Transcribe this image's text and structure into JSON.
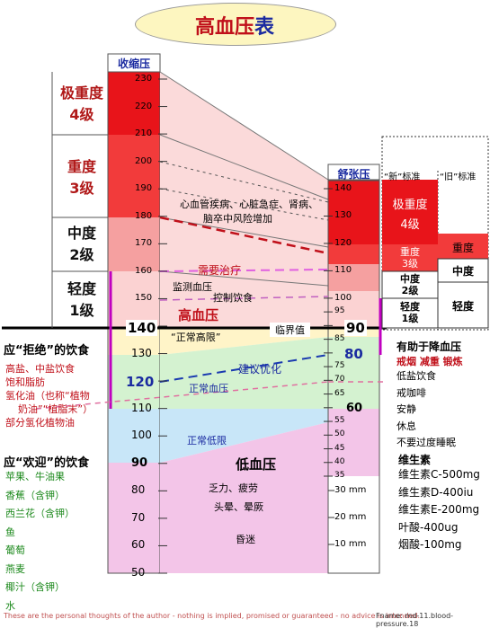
{
  "title": {
    "main": "高血压",
    "suffix": "表"
  },
  "systolic_header": "收缩压",
  "diastolic_header": "舒张压",
  "systolic_ticks": [
    "230",
    "220",
    "210",
    "200",
    "190",
    "180",
    "170",
    "160",
    "150",
    "140",
    "130",
    "120",
    "110",
    "100",
    "90",
    "80",
    "70",
    "60",
    "50"
  ],
  "diastolic_ticks": [
    "140",
    "130",
    "120",
    "110",
    "100",
    "95",
    "90",
    "85",
    "80",
    "75",
    "70",
    "65",
    "60",
    "55",
    "50",
    "45",
    "40",
    "35"
  ],
  "mm_ticks": [
    "30 mm",
    "20 mm",
    "10 mm"
  ],
  "grades_left": [
    {
      "name": "极重度",
      "level": "4级"
    },
    {
      "name": "重度",
      "level": "3级"
    },
    {
      "name": "中度",
      "level": "2级"
    },
    {
      "name": "轻度",
      "level": "1级"
    }
  ],
  "key_values": {
    "sys_140": "140",
    "sys_120": "120",
    "sys_90": "90",
    "dia_90": "90",
    "dia_80": "80",
    "dia_60": "60"
  },
  "center_labels": {
    "complications": "心血管疾病、心脏急症、肾病、",
    "stroke": "脑卒中风险增加",
    "need_treatment": "需要治疗",
    "monitor": "监测血压",
    "control_diet": "控制饮食",
    "hypertension": "高血压",
    "critical": "临界值",
    "normal_high": "“正常高限”",
    "suggest": "建议优化",
    "normal_bp": "正常血压",
    "normal_low": "正常低限",
    "hypotension": "低血压",
    "fatigue": "乏力、疲劳",
    "dizzy": "头晕、晕厥",
    "coma": "昏迷"
  },
  "standards": {
    "new_header": "“新”标准",
    "old_header": "“旧”标准",
    "new": [
      {
        "name": "极重度",
        "level": "4级"
      },
      {
        "name": "重度",
        "level": "3级"
      },
      {
        "name": "中度",
        "level": "2级"
      },
      {
        "name": "轻度",
        "level": "1级"
      }
    ],
    "old": [
      "重度",
      "中度",
      "轻度"
    ]
  },
  "reject_foods": {
    "title": "应“拒绝”的饮食",
    "items": [
      "高盐、中盐饮食",
      "饱和脂肪",
      "氢化油（也称“植物",
      "奶油”“植脂末”）",
      "部分氢化植物油"
    ]
  },
  "welcome_foods": {
    "title": "应“欢迎”的饮食",
    "items": [
      "苹果、牛油果",
      "香蕉（含钾）",
      "西兰花（含钾）",
      "鱼",
      "葡萄",
      "燕麦",
      "椰汁（含钾）",
      "水"
    ]
  },
  "helps": {
    "title": "有助于降血压",
    "highlight": "戒烟 减重 锻炼",
    "items": [
      "低盐饮食",
      "戒咖啡",
      "安静",
      "休息",
      "不要过度睡眠"
    ]
  },
  "vitamins": {
    "title": "维生素",
    "items": [
      "维生素C-500mg",
      "维生素D-400iu",
      "维生素E-200mg",
      "叶酸-400ug",
      "烟酸-100mg"
    ]
  },
  "footer": {
    "disclaimer": "These are the personal thoughts of the author - nothing is implied, promised or guaranteed - no advice is intended.",
    "fname": "Fname: md-11.blood-pressure.18"
  },
  "colors": {
    "deep_red": "#e8141a",
    "red": "#f23b3b",
    "pink": "#f7b0b0",
    "light_pink": "#fbd2d2",
    "yellow": "#fff4c8",
    "green": "#c8f0c8",
    "light_blue": "#c8e6f8",
    "violet": "#f3c5e8",
    "header_blue": "#1a2aa0",
    "magenta": "#c000c0",
    "green_text": "#1e8a1e"
  }
}
